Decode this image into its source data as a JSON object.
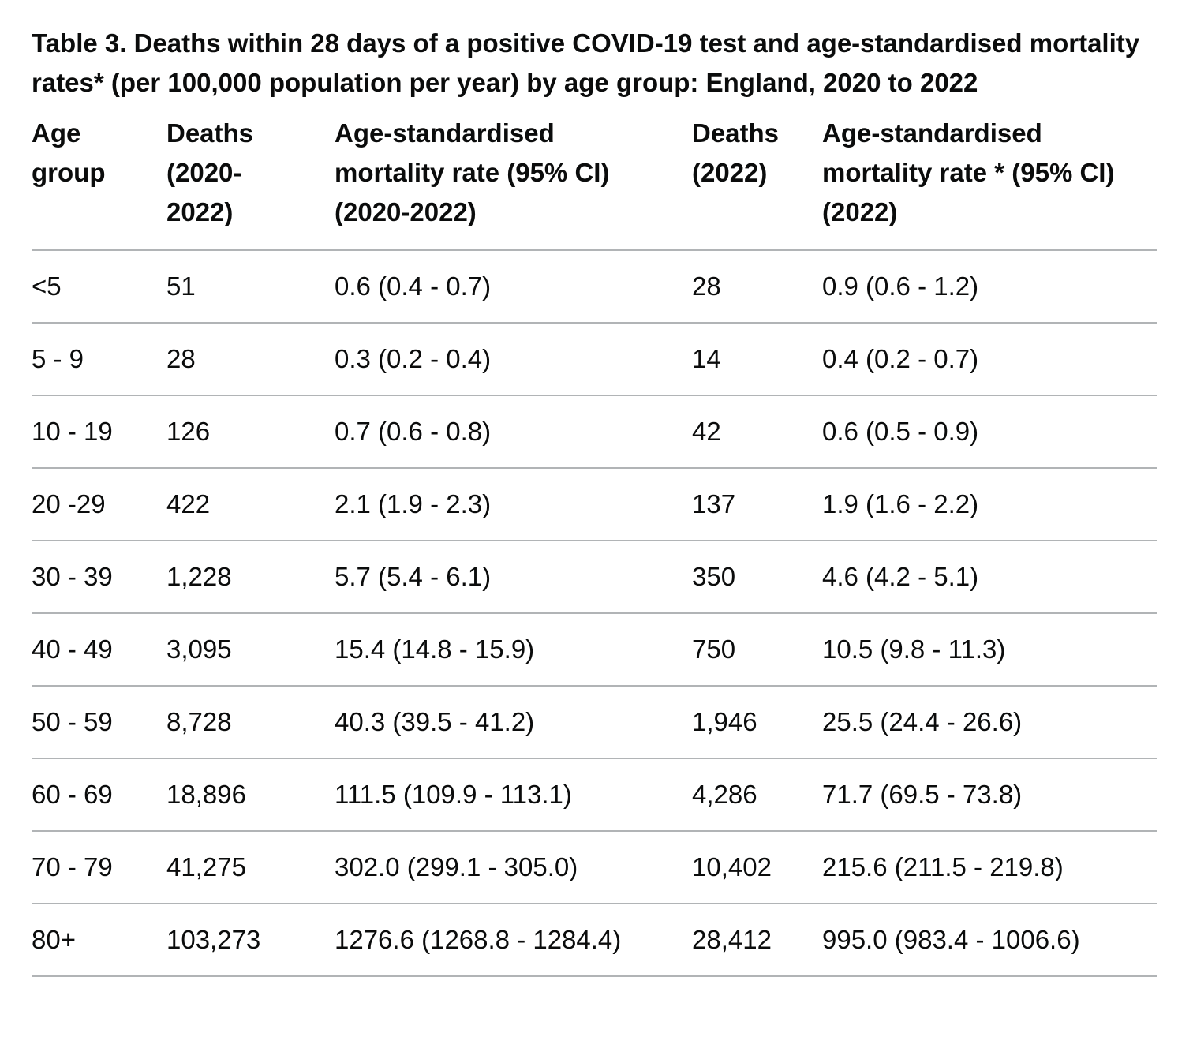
{
  "caption": "Table 3. Deaths within 28 days of a positive COVID-19 test and age-standardised mortality rates* (per 100,000 population per year) by age group: England, 2020 to 2022",
  "headers": {
    "age_group": "Age group",
    "deaths_2020_2022": "Deaths (2020-2022)",
    "rate_2020_2022": "Age-standardised mortality rate (95% CI) (2020-2022)",
    "deaths_2022": "Deaths (2022)",
    "rate_2022": "Age-standardised mortality rate * (95% CI) (2022)"
  },
  "rows": [
    {
      "age": "<5",
      "deaths_2020_2022": "51",
      "rate_2020_2022": "0.6 (0.4 - 0.7)",
      "deaths_2022": "28",
      "rate_2022": "0.9 (0.6 - 1.2)"
    },
    {
      "age": "5 - 9",
      "deaths_2020_2022": "28",
      "rate_2020_2022": "0.3 (0.2 - 0.4)",
      "deaths_2022": "14",
      "rate_2022": "0.4 (0.2 - 0.7)"
    },
    {
      "age": "10 - 19",
      "deaths_2020_2022": "126",
      "rate_2020_2022": "0.7 (0.6 - 0.8)",
      "deaths_2022": "42",
      "rate_2022": "0.6 (0.5 - 0.9)"
    },
    {
      "age": "20 -29",
      "deaths_2020_2022": "422",
      "rate_2020_2022": "2.1 (1.9 - 2.3)",
      "deaths_2022": "137",
      "rate_2022": "1.9 (1.6 - 2.2)"
    },
    {
      "age": "30 - 39",
      "deaths_2020_2022": "1,228",
      "rate_2020_2022": "5.7 (5.4 - 6.1)",
      "deaths_2022": "350",
      "rate_2022": "4.6 (4.2 - 5.1)"
    },
    {
      "age": "40 - 49",
      "deaths_2020_2022": "3,095",
      "rate_2020_2022": "15.4 (14.8 - 15.9)",
      "deaths_2022": "750",
      "rate_2022": "10.5 (9.8 - 11.3)"
    },
    {
      "age": "50 - 59",
      "deaths_2020_2022": "8,728",
      "rate_2020_2022": "40.3 (39.5 - 41.2)",
      "deaths_2022": "1,946",
      "rate_2022": "25.5 (24.4 - 26.6)"
    },
    {
      "age": "60 - 69",
      "deaths_2020_2022": "18,896",
      "rate_2020_2022": "111.5 (109.9 - 113.1)",
      "deaths_2022": "4,286",
      "rate_2022": "71.7 (69.5 - 73.8)"
    },
    {
      "age": "70 - 79",
      "deaths_2020_2022": "41,275",
      "rate_2020_2022": "302.0 (299.1 - 305.0)",
      "deaths_2022": "10,402",
      "rate_2022": "215.6 (211.5 - 219.8)"
    },
    {
      "age": "80+",
      "deaths_2020_2022": "103,273",
      "rate_2020_2022": "1276.6 (1268.8 - 1284.4)",
      "deaths_2022": "28,412",
      "rate_2022": "995.0 (983.4 - 1006.6)"
    }
  ]
}
